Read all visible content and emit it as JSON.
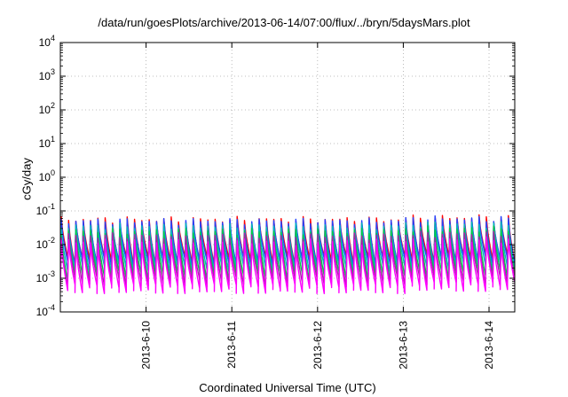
{
  "chart_data": {
    "type": "line",
    "title": "/data/run/goesPlots/archive/2013-06-14/07:00/flux/../bryn/5daysMars.plot",
    "xlabel": "Coordinated Universal Time (UTC)",
    "ylabel": "cGy/day",
    "y_scale": "log",
    "ylim": [
      0.0001,
      10000
    ],
    "y_ticks": [
      {
        "base": "10",
        "exp": "4"
      },
      {
        "base": "10",
        "exp": "3"
      },
      {
        "base": "10",
        "exp": "2"
      },
      {
        "base": "10",
        "exp": "1"
      },
      {
        "base": "10",
        "exp": "0"
      },
      {
        "base": "10",
        "exp": "-1"
      },
      {
        "base": "10",
        "exp": "-2"
      },
      {
        "base": "10",
        "exp": "-3"
      },
      {
        "base": "10",
        "exp": "-4"
      }
    ],
    "x_ticks": [
      "2013-6-10",
      "2013-6-11",
      "2013-6-12",
      "2013-6-13",
      "2013-6-14"
    ],
    "x_tick_pos_days": [
      1,
      2,
      3,
      4,
      5
    ],
    "x_range_days": [
      0.0,
      5.3
    ],
    "grid": true,
    "cycle_days": 0.0855,
    "series": [
      {
        "color": "#ff0000",
        "peak": 0.055,
        "trough": 0.0035
      },
      {
        "color": "#2244ff",
        "peak": 0.05,
        "trough": 0.003
      },
      {
        "color": "#00bbbb",
        "peak": 0.035,
        "trough": 0.002
      },
      {
        "color": "#00cc44",
        "peak": 0.025,
        "trough": 0.0012
      },
      {
        "color": "#aa22aa",
        "peak": 0.018,
        "trough": 0.0008
      },
      {
        "color": "#ff00ff",
        "peak": 0.012,
        "trough": 0.0005
      }
    ]
  }
}
